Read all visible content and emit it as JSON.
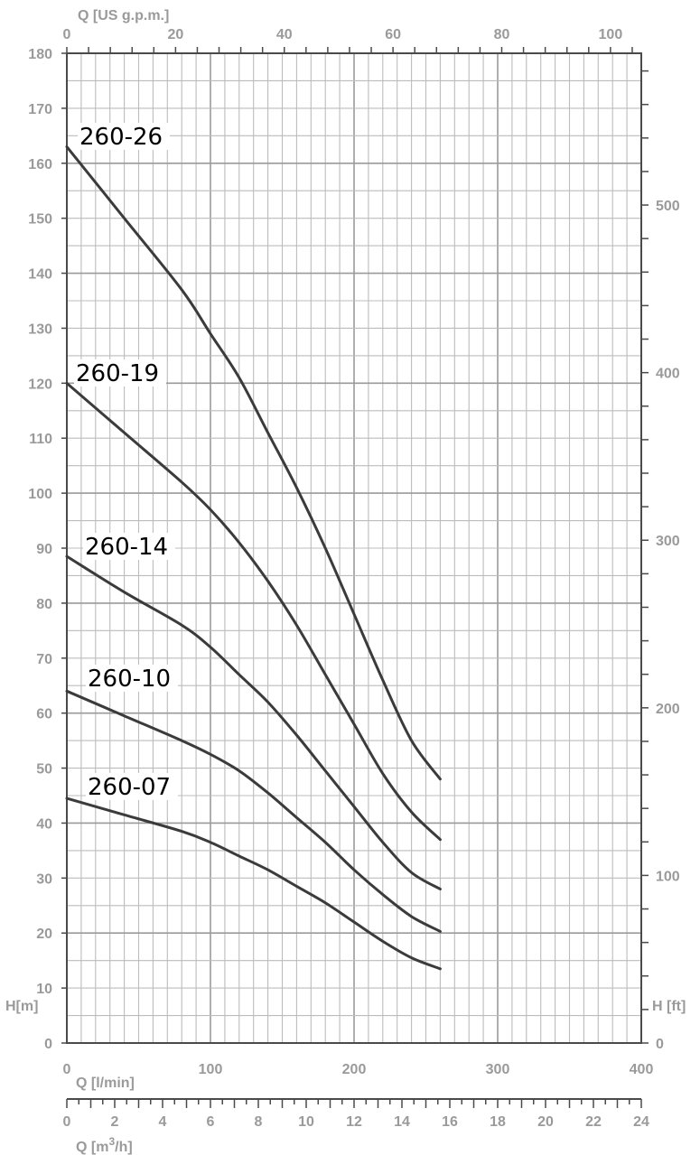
{
  "chart_data": {
    "type": "line",
    "title": "",
    "axes": {
      "x_bottom": {
        "label": "Q [l/min]",
        "range": [
          0,
          400
        ],
        "ticks": [
          0,
          100,
          200,
          300,
          400
        ]
      },
      "x_top": {
        "label": "Q [US g.p.m.]",
        "range": [
          0,
          105.67
        ],
        "ticks": [
          0,
          20,
          40,
          60,
          80,
          100
        ]
      },
      "x_m3h": {
        "label_prefix": "Q [m",
        "label_sup": "3",
        "label_suffix": "/h]",
        "range": [
          0,
          24
        ],
        "ticks": [
          0,
          2,
          4,
          6,
          8,
          10,
          12,
          14,
          16,
          18,
          20,
          22,
          24
        ]
      },
      "y_left": {
        "label": "H[m]",
        "range": [
          0,
          180
        ],
        "ticks": [
          0,
          10,
          20,
          30,
          40,
          50,
          60,
          70,
          80,
          90,
          100,
          110,
          120,
          130,
          140,
          150,
          160,
          170,
          180
        ]
      },
      "y_right": {
        "label": "H [ft]",
        "range": [
          0,
          590.55
        ],
        "ticks": [
          0,
          100,
          200,
          300,
          400,
          500
        ]
      }
    },
    "grid": true,
    "series": [
      {
        "name": "260-26",
        "x": [
          0,
          40,
          80,
          100,
          120,
          140,
          160,
          180,
          200,
          220,
          240,
          260
        ],
        "y": [
          163,
          150,
          137,
          129,
          121,
          111,
          101,
          90,
          78,
          66,
          55,
          48
        ]
      },
      {
        "name": "260-19",
        "x": [
          0,
          40,
          80,
          100,
          120,
          140,
          160,
          180,
          200,
          220,
          240,
          260
        ],
        "y": [
          120,
          111,
          102,
          97,
          91,
          84,
          76,
          67,
          58,
          49,
          42,
          37
        ]
      },
      {
        "name": "260-14",
        "x": [
          0,
          40,
          80,
          100,
          120,
          140,
          160,
          180,
          200,
          220,
          240,
          260
        ],
        "y": [
          88.5,
          82,
          76,
          72,
          67,
          62,
          56,
          49.5,
          43,
          36.5,
          31,
          28
        ]
      },
      {
        "name": "260-10",
        "x": [
          0,
          40,
          80,
          100,
          120,
          140,
          160,
          180,
          200,
          220,
          240,
          260
        ],
        "y": [
          64,
          59.5,
          55,
          52.5,
          49.5,
          45.5,
          41,
          36.5,
          31.5,
          27,
          23,
          20.3
        ]
      },
      {
        "name": "260-07",
        "x": [
          0,
          40,
          80,
          100,
          120,
          140,
          160,
          180,
          200,
          220,
          240,
          260
        ],
        "y": [
          44.5,
          41.5,
          38.5,
          36.5,
          34,
          31.5,
          28.5,
          25.5,
          22,
          18.5,
          15.5,
          13.5
        ]
      }
    ]
  }
}
